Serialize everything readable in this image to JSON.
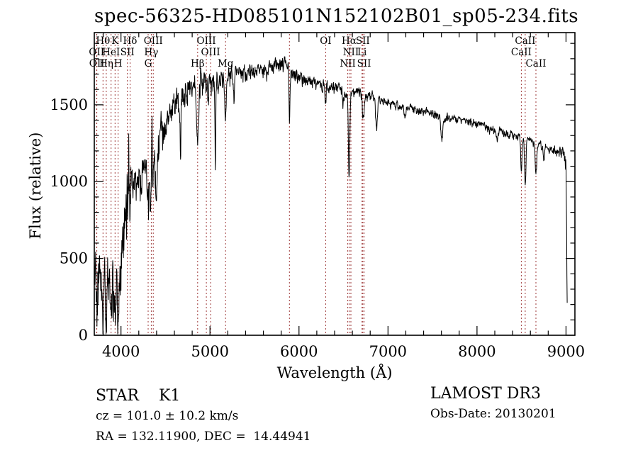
{
  "title": "spec-56325-HD085101N152102B01_sp05-234.fits",
  "annotations": {
    "star_class": "STAR    K1",
    "cz": "cz = 101.0 ± 10.2 km/s",
    "radec": "RA = 132.11900, DEC =  14.44941",
    "survey": "LAMOST DR3",
    "obs_date": "Obs-Date: 20130201"
  },
  "colors": {
    "background": "#ffffff",
    "spectrum": "#000000",
    "line_marker": "#9e3a3a",
    "text": "#000000",
    "axis": "#000000"
  },
  "chart_data": {
    "type": "line",
    "title": "spec-56325-HD085101N152102B01_sp05-234.fits",
    "xlabel": "Wavelength (Å)",
    "ylabel": "Flux (relative)",
    "xlim": [
      3700,
      9100
    ],
    "ylim": [
      0,
      1970
    ],
    "grid": false,
    "x_major_ticks": [
      4000,
      5000,
      6000,
      7000,
      8000,
      9000
    ],
    "x_minor_step": 200,
    "y_major_ticks": [
      0,
      500,
      1000,
      1500
    ],
    "y_minor_step": 100,
    "series_name": "flux",
    "sample_step": 3,
    "noise_seed": 5,
    "spectral_lines": [
      {
        "wavelength": 3726,
        "label": "OII",
        "row": 2
      },
      {
        "wavelength": 3729,
        "label": "OII",
        "row": 3
      },
      {
        "wavelength": 3798,
        "label": "Hθ",
        "row": 1
      },
      {
        "wavelength": 3835,
        "label": "Hη",
        "row": 3
      },
      {
        "wavelength": 3889,
        "label": "HeI",
        "row": 2
      },
      {
        "wavelength": 3933,
        "label": "K",
        "row": 1
      },
      {
        "wavelength": 3968,
        "label": "H",
        "row": 3
      },
      {
        "wavelength": 4072,
        "label": "SII",
        "row": 2
      },
      {
        "wavelength": 4102,
        "label": "Hδ",
        "row": 1
      },
      {
        "wavelength": 4305,
        "label": "G",
        "row": 3
      },
      {
        "wavelength": 4340,
        "label": "Hγ",
        "row": 2
      },
      {
        "wavelength": 4363,
        "label": "OIII",
        "row": 1
      },
      {
        "wavelength": 4861,
        "label": "Hβ",
        "row": 3
      },
      {
        "wavelength": 4959,
        "label": "OIII",
        "row": 1
      },
      {
        "wavelength": 5007,
        "label": "OIII",
        "row": 2
      },
      {
        "wavelength": 5175,
        "label": "Mg",
        "row": 3
      },
      {
        "wavelength": 5893,
        "label": "",
        "row": 2
      },
      {
        "wavelength": 6300,
        "label": "OI",
        "row": 1
      },
      {
        "wavelength": 6548,
        "label": "NII",
        "row": 3
      },
      {
        "wavelength": 6563,
        "label": "Hα",
        "row": 1
      },
      {
        "wavelength": 6583,
        "label": "NII",
        "row": 2
      },
      {
        "wavelength": 6708,
        "label": "Li",
        "row": 2
      },
      {
        "wavelength": 6717,
        "label": "SII",
        "row": 1
      },
      {
        "wavelength": 6731,
        "label": "SII",
        "row": 3
      },
      {
        "wavelength": 8498,
        "label": "CaII",
        "row": 2
      },
      {
        "wavelength": 8542,
        "label": "CaII",
        "row": 1
      },
      {
        "wavelength": 8662,
        "label": "CaII",
        "row": 3
      }
    ],
    "continuum_anchors": [
      [
        3700,
        430,
        260
      ],
      [
        3760,
        390,
        230
      ],
      [
        3800,
        310,
        190
      ],
      [
        3850,
        400,
        200
      ],
      [
        3900,
        380,
        195
      ],
      [
        3960,
        430,
        225
      ],
      [
        4010,
        560,
        240
      ],
      [
        4060,
        850,
        230
      ],
      [
        4110,
        1060,
        210
      ],
      [
        4160,
        1020,
        120
      ],
      [
        4260,
        1080,
        110
      ],
      [
        4330,
        1120,
        150
      ],
      [
        4400,
        1150,
        190
      ],
      [
        4460,
        1320,
        120
      ],
      [
        4520,
        1430,
        110
      ],
      [
        4600,
        1520,
        100
      ],
      [
        4700,
        1570,
        110
      ],
      [
        4800,
        1600,
        110
      ],
      [
        4900,
        1650,
        90
      ],
      [
        5000,
        1670,
        90
      ],
      [
        5100,
        1680,
        80
      ],
      [
        5250,
        1700,
        70
      ],
      [
        5400,
        1710,
        60
      ],
      [
        5550,
        1720,
        55
      ],
      [
        5700,
        1745,
        55
      ],
      [
        5850,
        1780,
        50
      ],
      [
        5950,
        1700,
        45
      ],
      [
        6100,
        1660,
        40
      ],
      [
        6250,
        1640,
        40
      ],
      [
        6400,
        1615,
        40
      ],
      [
        6550,
        1590,
        40
      ],
      [
        6700,
        1565,
        35
      ],
      [
        6850,
        1550,
        35
      ],
      [
        7000,
        1520,
        30
      ],
      [
        7150,
        1495,
        30
      ],
      [
        7300,
        1470,
        30
      ],
      [
        7450,
        1450,
        30
      ],
      [
        7600,
        1430,
        32
      ],
      [
        7750,
        1410,
        30
      ],
      [
        7900,
        1395,
        28
      ],
      [
        8050,
        1370,
        28
      ],
      [
        8200,
        1340,
        26
      ],
      [
        8350,
        1310,
        25
      ],
      [
        8500,
        1290,
        25
      ],
      [
        8650,
        1260,
        24
      ],
      [
        8780,
        1230,
        26
      ],
      [
        8900,
        1190,
        32
      ],
      [
        8960,
        1205,
        35
      ],
      [
        9000,
        1150,
        60
      ],
      [
        9008,
        600,
        120
      ],
      [
        9015,
        130,
        50
      ]
    ],
    "absorption_features": [
      [
        3727,
        240,
        5
      ],
      [
        3798,
        250,
        6
      ],
      [
        3835,
        270,
        6
      ],
      [
        3889,
        250,
        6
      ],
      [
        3933,
        300,
        8
      ],
      [
        3969,
        280,
        8
      ],
      [
        4088,
        -340,
        3
      ],
      [
        4102,
        260,
        7
      ],
      [
        4227,
        130,
        5
      ],
      [
        4305,
        230,
        10
      ],
      [
        4340,
        240,
        7
      ],
      [
        4347,
        -320,
        3
      ],
      [
        4395,
        330,
        8
      ],
      [
        4668,
        300,
        5
      ],
      [
        4861,
        330,
        8
      ],
      [
        5060,
        620,
        4
      ],
      [
        5175,
        260,
        10
      ],
      [
        5270,
        140,
        6
      ],
      [
        5893,
        340,
        6
      ],
      [
        6300,
        90,
        6
      ],
      [
        6495,
        80,
        6
      ],
      [
        6563,
        560,
        8
      ],
      [
        6717,
        130,
        6
      ],
      [
        6731,
        120,
        6
      ],
      [
        6870,
        190,
        10
      ],
      [
        7190,
        80,
        10
      ],
      [
        7605,
        150,
        12
      ],
      [
        8227,
        70,
        7
      ],
      [
        8498,
        240,
        7
      ],
      [
        8542,
        280,
        8
      ],
      [
        8662,
        210,
        8
      ],
      [
        8750,
        90,
        7
      ]
    ]
  }
}
